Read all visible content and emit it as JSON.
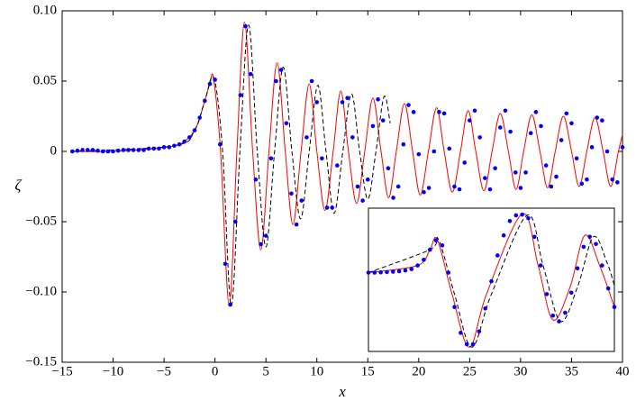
{
  "chart_data": [
    {
      "type": "line",
      "x_label": "x",
      "y_label": "ζ",
      "xlim": [
        -15,
        40
      ],
      "ylim": [
        -0.15,
        0.1
      ],
      "xticks": [
        {
          "value": -15,
          "label": "−15"
        },
        {
          "value": -10,
          "label": "−10"
        },
        {
          "value": -5,
          "label": "−5"
        },
        0,
        5,
        10,
        15,
        20,
        25,
        30,
        35,
        40
      ],
      "yticks": [
        {
          "value": -0.15,
          "label": "−0.15"
        },
        {
          "value": -0.1,
          "label": "−0.10"
        },
        {
          "value": -0.05,
          "label": "−0.05"
        },
        0,
        0.05,
        {
          "value": 0.1,
          "label": "0.10"
        }
      ],
      "series": [
        {
          "color": "#ff0000",
          "line_style": "solid",
          "x": [
            -14,
            -10,
            -6,
            -4,
            -3,
            -2,
            -1.5,
            -1,
            -0.5,
            -0.15,
            0.55,
            1.4,
            2.15,
            2.9,
            3.7,
            4.5,
            5.3,
            6.1,
            6.9,
            7.65,
            8.45,
            9.25,
            10.0,
            10.8,
            11.6,
            12.35,
            13.1,
            13.9,
            14.7,
            15.5,
            16.3,
            17.05,
            17.8,
            18.6,
            19.4,
            20.15,
            20.95,
            21.75,
            22.5,
            23.3,
            24.1,
            24.85,
            25.6,
            26.4,
            27.2,
            28.0,
            28.8,
            29.55,
            30.3,
            31.1,
            31.9,
            32.65,
            33.4,
            34.2,
            35.0,
            35.75,
            36.5,
            37.3,
            38.1,
            38.85,
            39.6,
            40
          ],
          "values": [
            0,
            0,
            0.002,
            0.004,
            0.007,
            0.015,
            0.024,
            0.036,
            0.048,
            0.052,
            0,
            -0.11,
            0,
            0.092,
            0,
            -0.07,
            0,
            0.063,
            0,
            -0.052,
            0,
            0.048,
            0,
            -0.042,
            0,
            0.043,
            0,
            -0.037,
            0,
            0.038,
            0,
            -0.033,
            0,
            0.034,
            0,
            -0.031,
            0,
            0.031,
            0,
            -0.029,
            0,
            0.029,
            0,
            -0.028,
            0,
            0.027,
            0,
            -0.027,
            0,
            0.026,
            0,
            -0.026,
            0,
            0.025,
            0,
            -0.025,
            0,
            0.024,
            0,
            -0.025,
            0,
            0.012
          ]
        },
        {
          "color": "#000000",
          "line_style": "dashed",
          "x": [
            -14,
            -4,
            -2,
            -1,
            -0.1,
            0.75,
            1.6,
            2.45,
            3.3,
            4.15,
            5.0,
            5.85,
            6.7,
            7.55,
            8.4,
            9.25,
            10.1,
            10.9,
            11.7,
            12.55,
            13.4,
            14.2,
            15.0,
            15.8,
            16.6,
            17.2
          ],
          "values": [
            0,
            0.004,
            0.015,
            0.036,
            0.052,
            0,
            -0.11,
            0,
            0.09,
            0,
            -0.068,
            0,
            0.06,
            0,
            -0.048,
            0,
            0.047,
            0,
            -0.044,
            0,
            0.041,
            0,
            -0.034,
            0,
            0.039,
            0.02
          ]
        },
        {
          "color": "#0000ff",
          "line_style": "none",
          "marker": "circle",
          "x": [
            -14,
            -13.5,
            -13,
            -12.5,
            -12,
            -11.5,
            -11,
            -10.5,
            -10,
            -9.5,
            -9,
            -8.5,
            -8,
            -7.5,
            -7,
            -6.5,
            -6,
            -5.5,
            -5,
            -4.5,
            -4,
            -3.5,
            -3,
            -2.5,
            -2,
            -1.5,
            -1,
            -0.5,
            0,
            0.5,
            1,
            1.5,
            2,
            2.5,
            3,
            3.5,
            4,
            4.5,
            5,
            5.5,
            6,
            6.5,
            7,
            7.5,
            8,
            8.5,
            9,
            9.5,
            10,
            10.5,
            11,
            11.5,
            12,
            12.5,
            13,
            13.5,
            14,
            14.5,
            15,
            15.5,
            16,
            16.5,
            17,
            17.5,
            18,
            18.5,
            19,
            19.5,
            20,
            20.5,
            21,
            21.5,
            22,
            22.5,
            23,
            23.5,
            24,
            24.5,
            25,
            25.5,
            26,
            26.5,
            27,
            27.5,
            28,
            28.5,
            29,
            29.5,
            30,
            30.5,
            31,
            31.5,
            32,
            32.5,
            33,
            33.5,
            34,
            34.5,
            35,
            35.5,
            36,
            36.5,
            37,
            37.5,
            38,
            38.5,
            39,
            39.5,
            40
          ],
          "values": [
            0,
            0.0005,
            0.001,
            0.001,
            0.001,
            0.0005,
            0,
            0,
            0,
            0.0005,
            0.001,
            0.001,
            0.001,
            0.001,
            0.001,
            0.002,
            0.002,
            0.002,
            0.003,
            0.003,
            0.004,
            0.005,
            0.007,
            0.01,
            0.015,
            0.024,
            0.036,
            0.048,
            0.051,
            0.005,
            -0.08,
            -0.109,
            -0.05,
            0.04,
            0.089,
            0.055,
            -0.02,
            -0.066,
            -0.06,
            -0.005,
            0.05,
            0.058,
            0.02,
            -0.03,
            -0.052,
            -0.035,
            0.01,
            0.05,
            0.035,
            -0.005,
            -0.04,
            -0.04,
            -0.01,
            0.035,
            0.038,
            0.01,
            -0.025,
            -0.035,
            -0.02,
            0.018,
            0.037,
            0.022,
            -0.012,
            -0.033,
            -0.025,
            0.005,
            0.033,
            0.028,
            -0.002,
            -0.029,
            -0.026,
            0,
            0.028,
            0.027,
            0.002,
            -0.025,
            -0.027,
            -0.008,
            0.022,
            0.029,
            0.01,
            -0.019,
            -0.027,
            -0.012,
            0.017,
            0.029,
            0.014,
            -0.015,
            -0.026,
            -0.015,
            0.013,
            0.028,
            0.018,
            -0.01,
            -0.025,
            -0.018,
            0.008,
            0.027,
            0.02,
            -0.005,
            -0.023,
            -0.02,
            0.003,
            0.024,
            0.022,
            0,
            -0.02,
            -0.022,
            0.003
          ]
        }
      ]
    },
    {
      "type": "line",
      "xlim": [
        0,
        100
      ],
      "ylim": [
        0,
        100
      ],
      "series": [
        {
          "color": "#ff0000",
          "line_style": "solid",
          "x": [
            0,
            20,
            25,
            28,
            34,
            41,
            48,
            62.5,
            69,
            75,
            82,
            88,
            94,
            100
          ],
          "values": [
            55,
            60,
            71,
            78,
            40,
            3,
            40,
            96,
            60,
            22,
            45,
            81,
            60,
            31
          ]
        },
        {
          "color": "#000000",
          "line_style": "dashed",
          "x": [
            0,
            25,
            28.5,
            35,
            42,
            50,
            64.5,
            71,
            78,
            85,
            91.5,
            97,
            100
          ],
          "values": [
            55,
            71,
            78,
            40,
            3,
            40,
            95,
            60,
            21,
            45,
            80,
            62,
            46
          ]
        },
        {
          "color": "#0000ff",
          "line_style": "none",
          "marker": "circle",
          "x": [
            0,
            2.5,
            5,
            7.5,
            10,
            12.5,
            15,
            17.5,
            20,
            22.5,
            25,
            27.5,
            30,
            32.5,
            35,
            37.5,
            40,
            42.5,
            45,
            47.5,
            50,
            52.5,
            55,
            57.5,
            60,
            62.5,
            65,
            67.5,
            70,
            72.5,
            75,
            77.5,
            80,
            82.5,
            85,
            87.5,
            90,
            92.5,
            95,
            97.5,
            100
          ],
          "values": [
            55,
            55,
            55.2,
            55.4,
            55.7,
            56,
            56.5,
            57.5,
            60,
            64,
            71,
            77.5,
            74,
            55,
            31,
            13,
            5,
            5,
            14,
            30,
            49,
            67,
            81,
            91,
            95,
            95.5,
            93,
            80,
            60,
            40,
            25,
            21,
            27,
            41,
            58,
            73,
            80,
            75,
            60,
            44,
            31
          ]
        }
      ]
    }
  ]
}
